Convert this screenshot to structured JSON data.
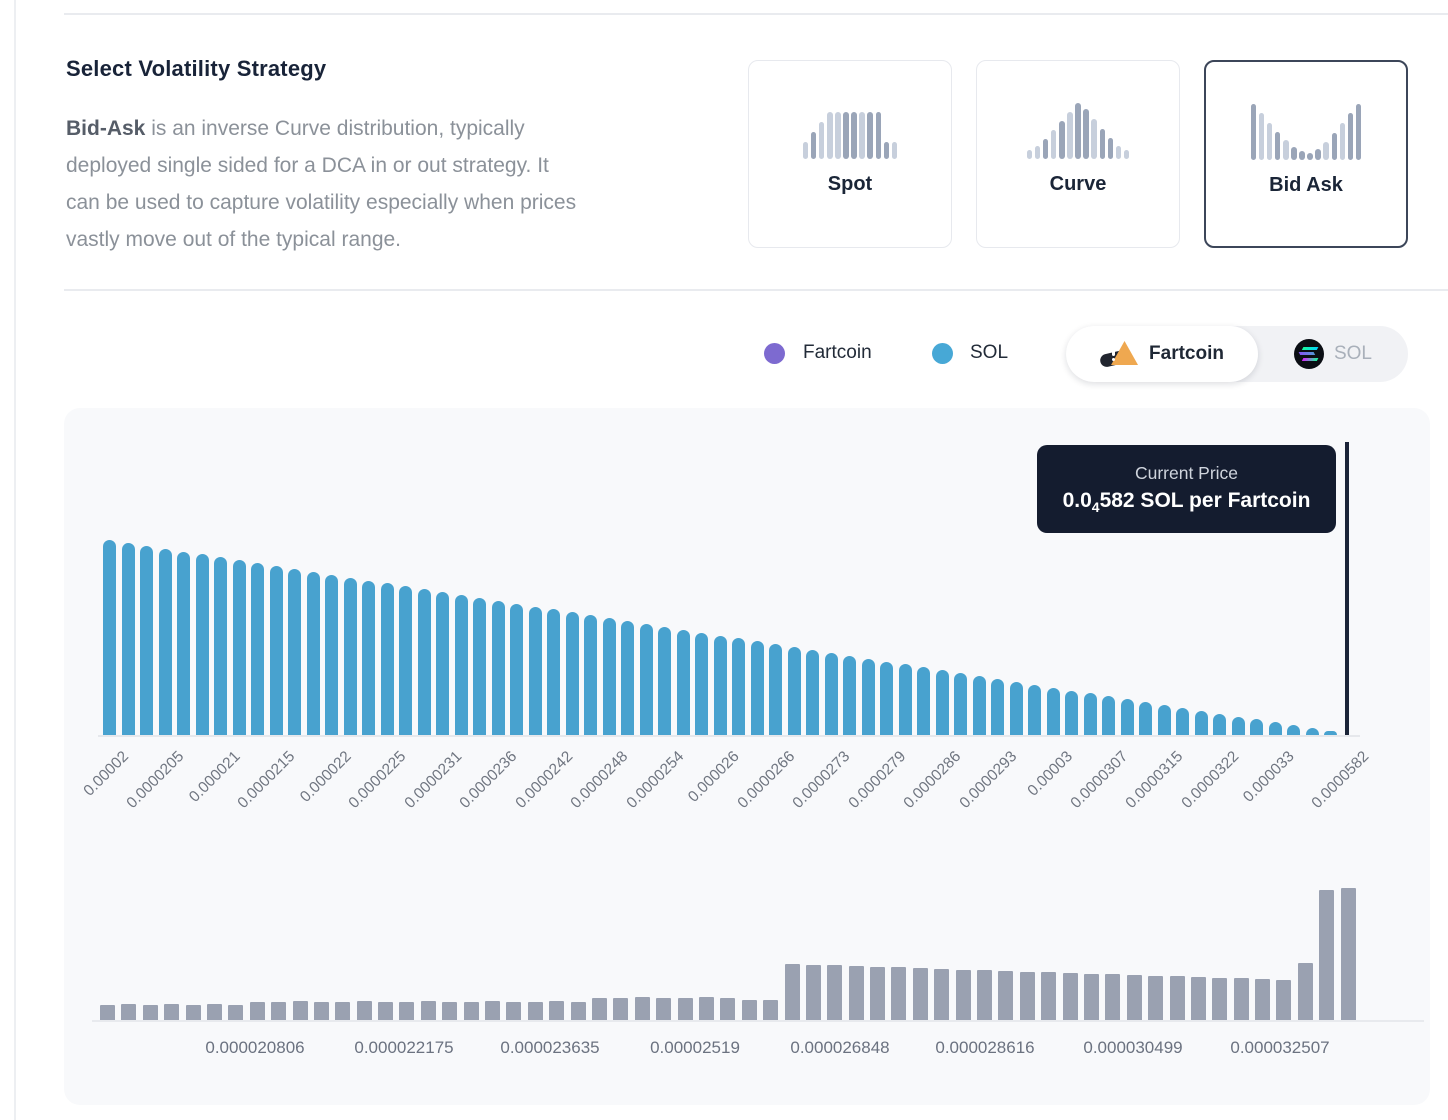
{
  "strategy_section": {
    "title": "Select Volatility Strategy",
    "description_lines": [
      {
        "bold": "Bid-Ask",
        "text": " is an inverse Curve distribution, typically"
      },
      {
        "bold": "",
        "text": "deployed single sided for a DCA in or out strategy. It"
      },
      {
        "bold": "",
        "text": "can be used to capture volatility especially when prices"
      },
      {
        "bold": "",
        "text": "vastly move out of the typical range."
      }
    ],
    "options": [
      {
        "label": "Spot",
        "selected": false,
        "icon": "spot-distribution-icon",
        "icon_heights": [
          30,
          48,
          66,
          84,
          84,
          84,
          84,
          84,
          84,
          84,
          30,
          30
        ],
        "icon_tones": [
          0,
          1,
          0,
          0,
          0,
          1,
          1,
          0,
          1,
          1,
          1,
          0
        ]
      },
      {
        "label": "Curve",
        "selected": false,
        "icon": "curve-distribution-icon",
        "icon_heights": [
          16,
          24,
          36,
          52,
          68,
          84,
          100,
          90,
          72,
          54,
          38,
          24,
          16
        ],
        "icon_tones": [
          0,
          0,
          1,
          0,
          1,
          0,
          1,
          1,
          0,
          1,
          1,
          0,
          0
        ]
      },
      {
        "label": "Bid Ask",
        "selected": true,
        "icon": "bid-ask-distribution-icon",
        "icon_heights": [
          100,
          84,
          66,
          50,
          36,
          24,
          16,
          13,
          20,
          32,
          48,
          66,
          84,
          100
        ],
        "icon_tones": [
          1,
          0,
          0,
          1,
          0,
          1,
          1,
          1,
          1,
          0,
          1,
          0,
          1,
          1
        ]
      }
    ]
  },
  "legend": {
    "items": [
      {
        "label": "Fartcoin",
        "color": "#7d6ad0"
      },
      {
        "label": "SOL",
        "color": "#47a8d6"
      }
    ]
  },
  "token_toggle": {
    "options": [
      {
        "label": "Fartcoin",
        "selected": true,
        "icon": "fartcoin-token-icon"
      },
      {
        "label": "SOL",
        "selected": false,
        "icon": "solana-token-icon"
      }
    ]
  },
  "current_price_tooltip": {
    "title": "Current Price",
    "price_prefix": "0.0",
    "price_subscript": "4",
    "price_suffix": "582 SOL per Fartcoin"
  },
  "chart_data": [
    {
      "name": "liquidity-distribution",
      "type": "bar",
      "current_price": "0.0000582",
      "x_tick_labels": [
        "0.00002",
        "0.0000205",
        "0.000021",
        "0.0000215",
        "0.000022",
        "0.0000225",
        "0.0000231",
        "0.0000236",
        "0.0000242",
        "0.0000248",
        "0.0000254",
        "0.000026",
        "0.0000266",
        "0.0000273",
        "0.0000279",
        "0.0000286",
        "0.0000293",
        "0.00003",
        "0.0000307",
        "0.0000315",
        "0.0000322",
        "0.000033",
        "0.0000582"
      ],
      "series": [
        {
          "name": "SOL",
          "color": "#48a2cf",
          "values": [
            195,
            192,
            189,
            186,
            183,
            181,
            178,
            175,
            172,
            169,
            166,
            163,
            160,
            157,
            154,
            152,
            149,
            146,
            143,
            140,
            137,
            134,
            131,
            128,
            126,
            123,
            120,
            117,
            114,
            111,
            108,
            105,
            102,
            99,
            97,
            94,
            91,
            88,
            85,
            82,
            79,
            76,
            73,
            71,
            68,
            65,
            62,
            59,
            56,
            53,
            50,
            47,
            44,
            42,
            39,
            36,
            33,
            30,
            27,
            24,
            21,
            18,
            16,
            13,
            10,
            7,
            4
          ]
        }
      ]
    },
    {
      "name": "price-range-overview",
      "type": "bar",
      "x_tick_labels": [
        "0.000020806",
        "0.000022175",
        "0.000023635",
        "0.00002519",
        "0.000026848",
        "0.000028616",
        "0.000030499",
        "0.000032507"
      ],
      "series": [
        {
          "name": "liquidity",
          "color": "#9aa1b1",
          "values": [
            15,
            16,
            15,
            16,
            15,
            16,
            15,
            18,
            18,
            19,
            18,
            18,
            19,
            18,
            18,
            19,
            18,
            18,
            19,
            18,
            18,
            19,
            18,
            22,
            22,
            23,
            22,
            22,
            23,
            22,
            20,
            20,
            56,
            55,
            55,
            54,
            53,
            53,
            52,
            51,
            50,
            50,
            49,
            48,
            48,
            47,
            46,
            46,
            45,
            44,
            44,
            43,
            42,
            42,
            41,
            40,
            57,
            130,
            132
          ]
        }
      ]
    }
  ],
  "colors": {
    "panel_bg": "#f8f9fb",
    "main_bar": "#48a2cf",
    "mini_bar": "#9aa1b1",
    "price_line": "#1b2438",
    "tooltip_bg": "#141c2f",
    "selected_card_border": "#3c4659",
    "divider": "#e9ebef",
    "icon_tone_light": "#c7cfdc",
    "icon_tone_dark": "#9aa5b8"
  }
}
